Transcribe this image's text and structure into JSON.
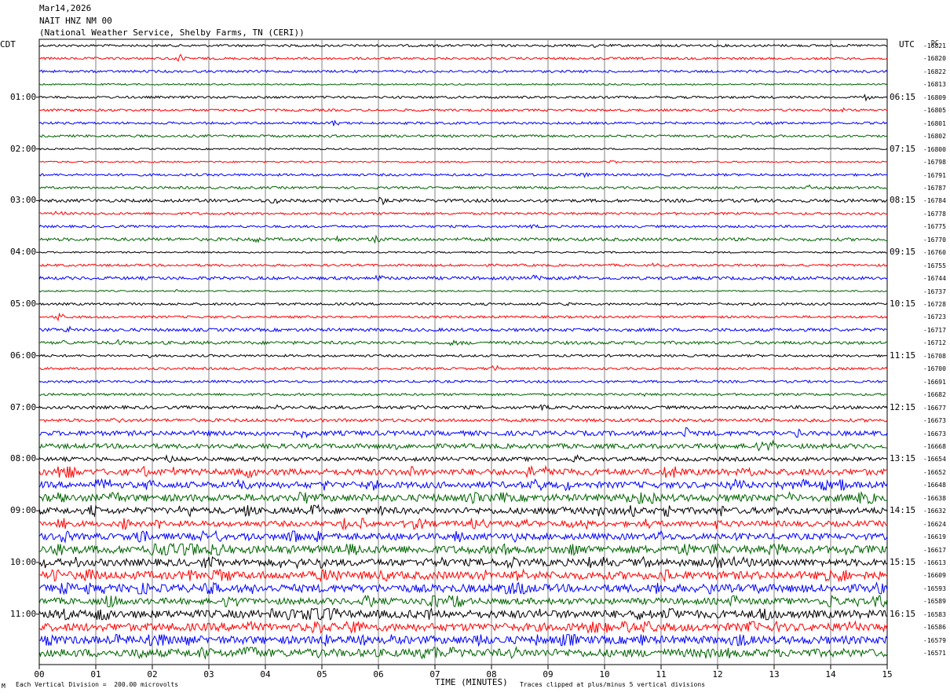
{
  "header": {
    "date": "Mar14,2026",
    "station": "NAIT HNZ NM 00",
    "network": "(National Weather Service, Shelby Farms, TN (CERI))"
  },
  "left_timezone": "CDT",
  "right_timezone": "UTC",
  "dc_label": "DC",
  "footer": {
    "scale_note": "Each Vertical Division =  200.00 microvolts",
    "clip_note": "Traces clipped at plus/minus 5 vertical divisions",
    "corner_mark": "M"
  },
  "chart_data": {
    "type": "line",
    "title": "",
    "xlabel": "TIME (MINUTES)",
    "xlim": [
      0,
      15
    ],
    "x_ticks": [
      "00",
      "01",
      "02",
      "03",
      "04",
      "05",
      "06",
      "07",
      "08",
      "09",
      "10",
      "11",
      "12",
      "13",
      "14",
      "15"
    ],
    "rows_per_hour": 4,
    "trace_colors": [
      "#000000",
      "#ff0000",
      "#0000ff",
      "#006400"
    ],
    "left_hour_labels": [
      "01:00",
      "02:00",
      "03:00",
      "04:00",
      "05:00",
      "06:00",
      "07:00",
      "08:00",
      "09:00",
      "10:00",
      "11:00"
    ],
    "right_hour_labels": [
      "06:15",
      "07:15",
      "08:15",
      "09:15",
      "10:15",
      "11:15",
      "12:15",
      "13:15",
      "14:15",
      "15:15",
      "16:15"
    ],
    "dc_offsets": [
      "-16821",
      "-16820",
      "-16822",
      "-16813",
      "-16809",
      "-16805",
      "-16801",
      "-16802",
      "-16800",
      "-16798",
      "-16791",
      "-16787",
      "-16784",
      "-16778",
      "-16775",
      "-16770",
      "-16760",
      "-16755",
      "-16744",
      "-16737",
      "-16728",
      "-16723",
      "-16717",
      "-16712",
      "-16708",
      "-16700",
      "-16691",
      "-16682",
      "-16677",
      "-16673",
      "-16673",
      "-16668",
      "-16654",
      "-16652",
      "-16648",
      "-16638",
      "-16632",
      "-16624",
      "-16619",
      "-16617",
      "-16613",
      "-16609",
      "-16593",
      "-16589",
      "-16583",
      "-16586",
      "-16579",
      "-16571"
    ],
    "noise_level": [
      1.5,
      1.5,
      1.5,
      1,
      1.5,
      1.5,
      1.5,
      1.5,
      1,
      1,
      1.5,
      1.5,
      2,
      1.5,
      1.5,
      2,
      1,
      1.5,
      2,
      1,
      1.5,
      1.5,
      2,
      2,
      1.5,
      1.5,
      1.5,
      1.5,
      2,
      2,
      3,
      3,
      2.5,
      4,
      4,
      4.5,
      4,
      3.5,
      4,
      5,
      4.5,
      5,
      5,
      4,
      5,
      5,
      5,
      5
    ]
  }
}
